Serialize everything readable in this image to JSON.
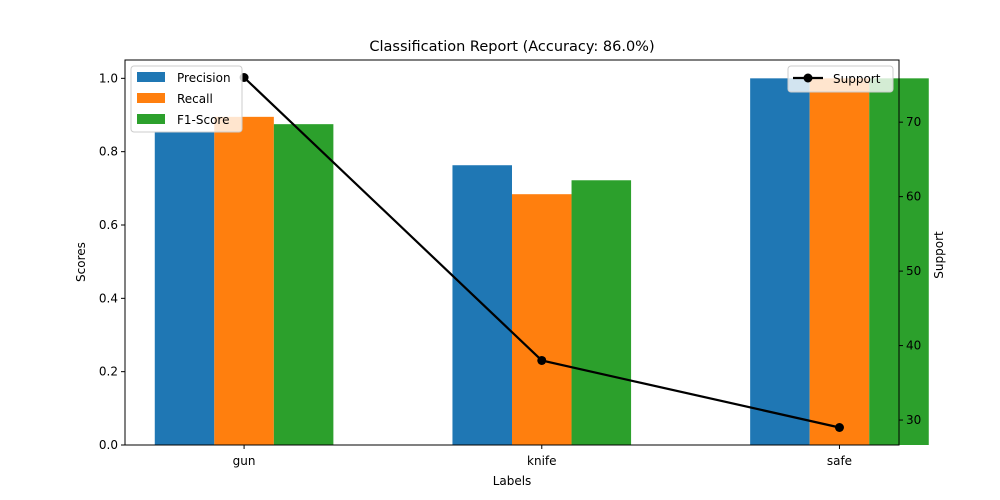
{
  "chart_data": {
    "type": "bar",
    "title": "Classification Report (Accuracy: 86.0%)",
    "xlabel": "Labels",
    "ylabel": "Scores",
    "ylabel_right": "Support",
    "categories": [
      "gun",
      "knife",
      "safe"
    ],
    "ylim": [
      0,
      1.05
    ],
    "yticks": [
      0.0,
      0.2,
      0.4,
      0.6,
      0.8,
      1.0
    ],
    "ytick_labels": [
      "0.0",
      "0.2",
      "0.4",
      "0.6",
      "0.8",
      "1.0"
    ],
    "ylim_right": [
      26.65,
      78.35
    ],
    "yticks_right": [
      30,
      40,
      50,
      60,
      70
    ],
    "ytick_labels_right": [
      "30",
      "40",
      "50",
      "60",
      "70"
    ],
    "grid": false,
    "series": [
      {
        "name": "Precision",
        "color": "#1f77b4",
        "values": [
          0.855,
          0.763,
          1.0
        ]
      },
      {
        "name": "Recall",
        "color": "#ff7f0e",
        "values": [
          0.895,
          0.684,
          1.0
        ]
      },
      {
        "name": "F1-Score",
        "color": "#2ca02c",
        "values": [
          0.875,
          0.722,
          1.0
        ]
      }
    ],
    "line_series": {
      "name": "Support",
      "color": "#000000",
      "axis": "right",
      "values": [
        76,
        38,
        29
      ]
    },
    "legend_bars": "top-left",
    "legend_line": "top-right"
  }
}
